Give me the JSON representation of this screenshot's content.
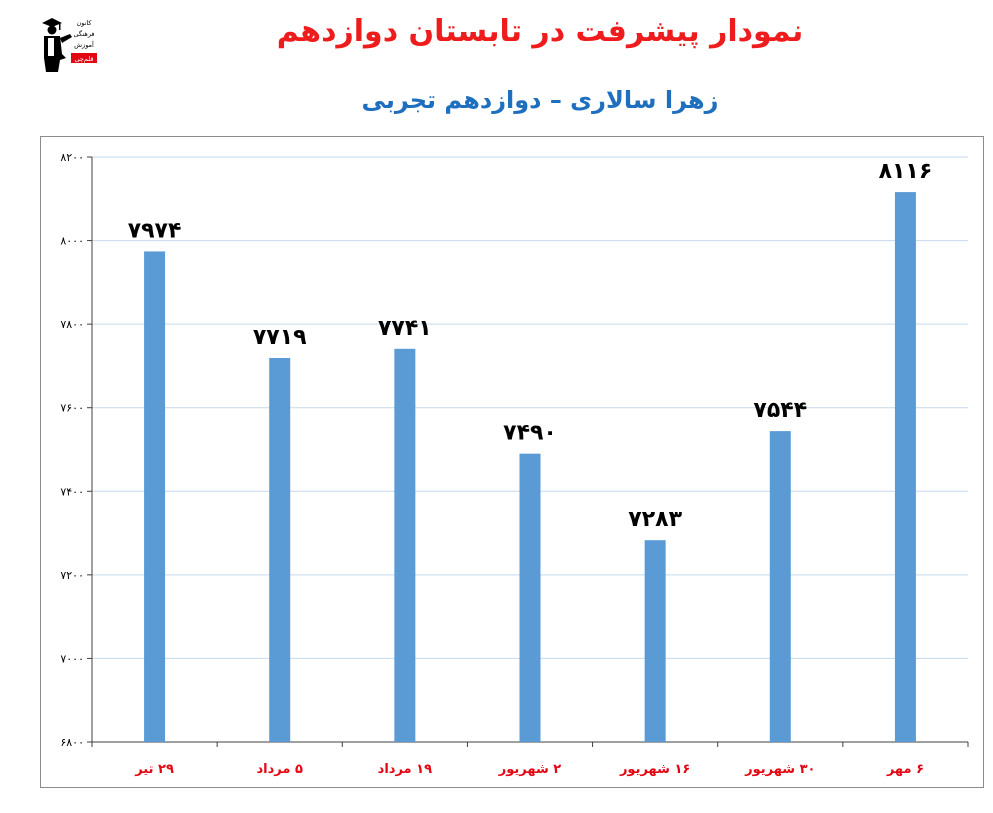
{
  "header": {
    "title": "نمودار پیشرفت در تابستان دوازدهم",
    "subtitle": "زهرا سالاری – دوازدهم تجربی",
    "logo_lines": [
      "کانون",
      "فرهنگی",
      "آموزش",
      "قلم‌چی"
    ]
  },
  "colors": {
    "title": "#ee1c1c",
    "subtitle": "#1f6fbf",
    "bar": "#5b9bd5",
    "grid": "#c6d9ee",
    "category_label": "#e30613"
  },
  "chart_data": {
    "type": "bar",
    "categories": [
      "۲۹ تیر",
      "۵ مرداد",
      "۱۹ مرداد",
      "۲ شهریور",
      "۱۶ شهریور",
      "۳۰ شهریور",
      "۶ مهر"
    ],
    "values": [
      7974,
      7719,
      7741,
      7490,
      7283,
      7544,
      8116
    ],
    "data_labels": [
      "۷۹۷۴",
      "۷۷۱۹",
      "۷۷۴۱",
      "۷۴۹۰",
      "۷۲۸۳",
      "۷۵۴۴",
      "۸۱۱۶"
    ],
    "yticks": [
      6800,
      7000,
      7200,
      7400,
      7600,
      7800,
      8000,
      8200
    ],
    "ytick_labels": [
      "۶۸۰۰",
      "۷۰۰۰",
      "۷۲۰۰",
      "۷۴۰۰",
      "۷۶۰۰",
      "۷۸۰۰",
      "۸۰۰۰",
      "۸۲۰۰"
    ],
    "ylim": [
      6800,
      8200
    ],
    "grid": true,
    "legend": "none"
  }
}
